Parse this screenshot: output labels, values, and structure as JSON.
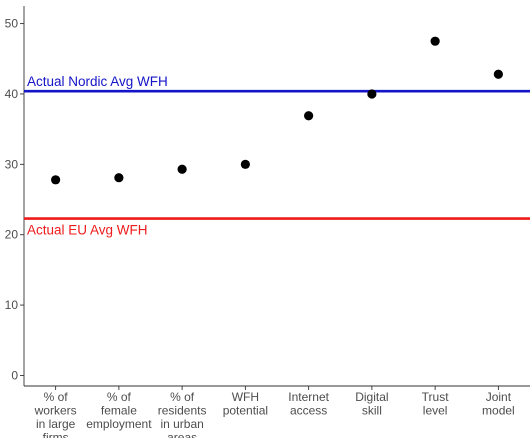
{
  "chart_data": {
    "type": "scatter",
    "categories": [
      [
        "% of",
        "workers",
        "in large",
        "firms"
      ],
      [
        "% of",
        "female",
        "employment"
      ],
      [
        "% of",
        "residents",
        "in urban",
        "areas"
      ],
      [
        "WFH",
        "potential"
      ],
      [
        "Internet",
        "access"
      ],
      [
        "Digital",
        "skill"
      ],
      [
        "Trust",
        "level"
      ],
      [
        "Joint",
        "model"
      ]
    ],
    "values": [
      27.8,
      28.1,
      29.3,
      30.0,
      36.9,
      40.0,
      47.5,
      42.8
    ],
    "point_color": "#000000",
    "ylim": [
      -1.5,
      52.5
    ],
    "yticks": [
      0,
      10,
      20,
      30,
      40,
      50
    ],
    "grid": false,
    "reference_lines": [
      {
        "label": "Actual Nordic Avg WFH",
        "value": 40.4,
        "color": "#1414c8"
      },
      {
        "label": "Actual EU Avg WFH",
        "value": 22.3,
        "color": "#ee1c1c"
      }
    ]
  }
}
